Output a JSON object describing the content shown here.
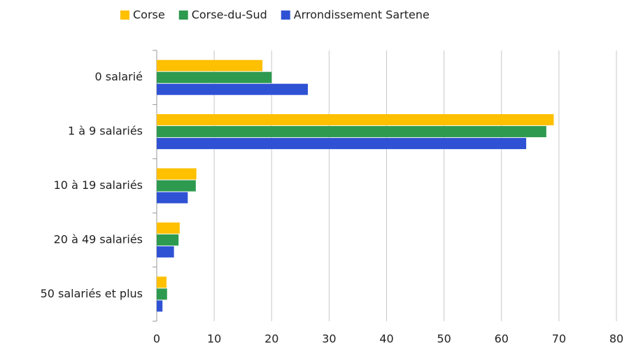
{
  "chart_data": {
    "type": "hbar",
    "categories": [
      "0 salarié",
      "1 à 9 salariés",
      "10 à 19 salariés",
      "20 à 49 salariés",
      "50 salariés et plus"
    ],
    "series": [
      {
        "name": "Corse",
        "color": "#ffc000",
        "values": [
          18.4,
          69.1,
          6.9,
          4.0,
          1.7
        ]
      },
      {
        "name": "Corse-du-Sud",
        "color": "#2e9a4f",
        "values": [
          20.0,
          67.8,
          6.8,
          3.8,
          1.8
        ]
      },
      {
        "name": "Arrondissement Sartene",
        "color": "#2f52d4",
        "values": [
          26.3,
          64.3,
          5.4,
          3.0,
          1.0
        ]
      }
    ],
    "xlim": [
      0,
      80
    ],
    "xticks": [
      0,
      10,
      20,
      30,
      40,
      50,
      60,
      70,
      80
    ],
    "grid": true,
    "legend": "top"
  }
}
